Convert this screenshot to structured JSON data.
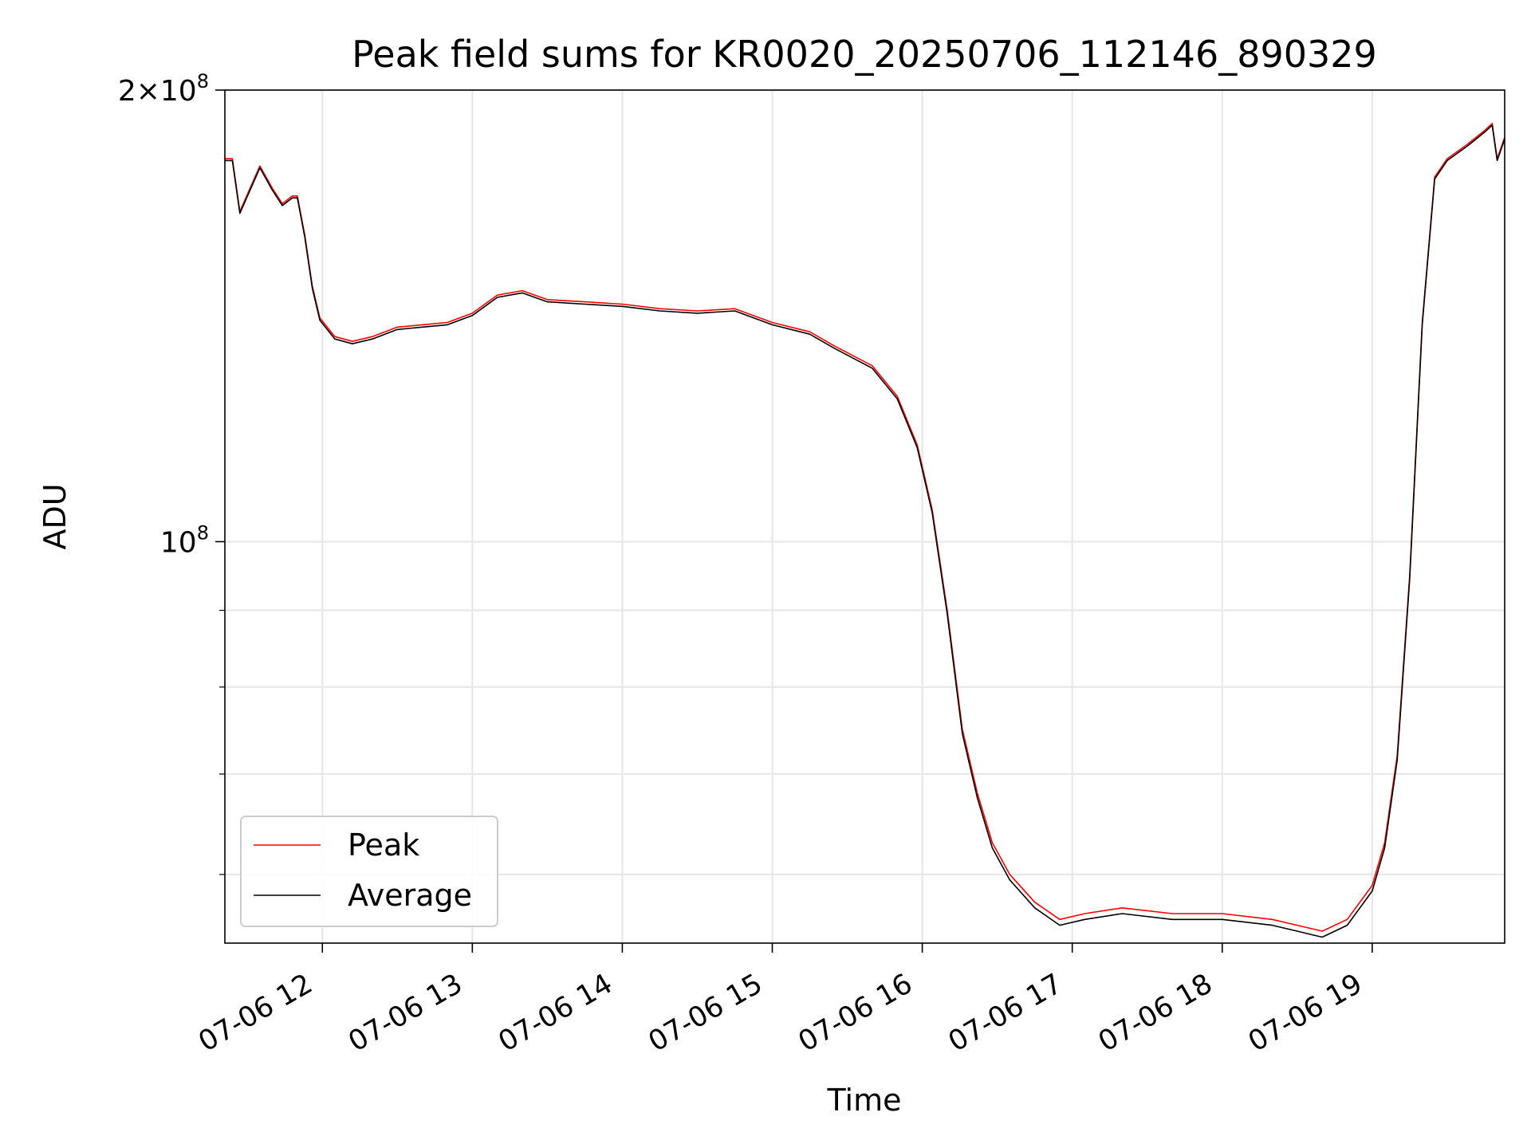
{
  "chart_data": {
    "type": "line",
    "title": "Peak field sums for KR0020_20250706_112146_890329",
    "xlabel": "Time",
    "ylabel": "ADU",
    "x_type": "datetime",
    "x_range": [
      "2025-07-06 11:21",
      "2025-07-06 19:53"
    ],
    "x_ticks": [
      {
        "t": "2025-07-06 12:00",
        "label": "07-06 12"
      },
      {
        "t": "2025-07-06 13:00",
        "label": "07-06 13"
      },
      {
        "t": "2025-07-06 14:00",
        "label": "07-06 14"
      },
      {
        "t": "2025-07-06 15:00",
        "label": "07-06 15"
      },
      {
        "t": "2025-07-06 16:00",
        "label": "07-06 16"
      },
      {
        "t": "2025-07-06 17:00",
        "label": "07-06 17"
      },
      {
        "t": "2025-07-06 18:00",
        "label": "07-06 18"
      },
      {
        "t": "2025-07-06 19:00",
        "label": "07-06 19"
      }
    ],
    "y_scale": "log",
    "ylim": [
      54000000,
      200000000
    ],
    "y_ticks_major": [
      {
        "value": 100000000,
        "base": "10",
        "exp": "8"
      },
      {
        "value": 200000000,
        "base": "2×10",
        "exp": "8"
      }
    ],
    "y_ticks_minor": [
      60000000,
      70000000,
      80000000,
      90000000
    ],
    "grid": true,
    "legend_position": "lower-left",
    "series": [
      {
        "name": "Peak",
        "color": "#ff0000",
        "line_width": 1,
        "x": [
          "2025-07-06 11:21",
          "2025-07-06 11:24",
          "2025-07-06 11:27",
          "2025-07-06 11:35",
          "2025-07-06 11:40",
          "2025-07-06 11:44",
          "2025-07-06 11:48",
          "2025-07-06 11:50",
          "2025-07-06 11:53",
          "2025-07-06 11:56",
          "2025-07-06 11:59",
          "2025-07-06 12:05",
          "2025-07-06 12:12",
          "2025-07-06 12:20",
          "2025-07-06 12:30",
          "2025-07-06 12:40",
          "2025-07-06 12:50",
          "2025-07-06 13:00",
          "2025-07-06 13:10",
          "2025-07-06 13:20",
          "2025-07-06 13:30",
          "2025-07-06 13:45",
          "2025-07-06 14:00",
          "2025-07-06 14:15",
          "2025-07-06 14:30",
          "2025-07-06 14:45",
          "2025-07-06 15:00",
          "2025-07-06 15:15",
          "2025-07-06 15:25",
          "2025-07-06 15:40",
          "2025-07-06 15:50",
          "2025-07-06 15:58",
          "2025-07-06 16:04",
          "2025-07-06 16:10",
          "2025-07-06 16:16",
          "2025-07-06 16:22",
          "2025-07-06 16:28",
          "2025-07-06 16:35",
          "2025-07-06 16:45",
          "2025-07-06 16:55",
          "2025-07-06 17:05",
          "2025-07-06 17:20",
          "2025-07-06 17:40",
          "2025-07-06 18:00",
          "2025-07-06 18:20",
          "2025-07-06 18:30",
          "2025-07-06 18:40",
          "2025-07-06 18:50",
          "2025-07-06 19:00",
          "2025-07-06 19:05",
          "2025-07-06 19:10",
          "2025-07-06 19:15",
          "2025-07-06 19:20",
          "2025-07-06 19:25",
          "2025-07-06 19:30",
          "2025-07-06 19:38",
          "2025-07-06 19:45",
          "2025-07-06 19:48",
          "2025-07-06 19:50",
          "2025-07-06 19:53"
        ],
        "y": [
          180000000,
          180000000,
          166000000,
          178000000,
          172000000,
          168000000,
          170000000,
          170000000,
          160000000,
          148000000,
          141000000,
          137000000,
          136000000,
          137000000,
          139000000,
          139500000,
          140000000,
          142000000,
          146000000,
          147000000,
          145000000,
          144500000,
          144000000,
          143000000,
          142500000,
          143000000,
          140000000,
          138000000,
          135000000,
          131000000,
          125000000,
          116000000,
          105000000,
          90000000,
          75000000,
          68000000,
          63000000,
          60000000,
          57500000,
          56000000,
          56500000,
          57000000,
          56500000,
          56500000,
          56000000,
          55500000,
          55000000,
          56000000,
          59000000,
          63000000,
          72000000,
          95000000,
          140000000,
          175000000,
          180000000,
          184000000,
          188000000,
          190000000,
          180000000,
          186000000
        ]
      },
      {
        "name": "Average",
        "color": "#000000",
        "line_width": 1,
        "x": [
          "2025-07-06 11:21",
          "2025-07-06 11:24",
          "2025-07-06 11:27",
          "2025-07-06 11:35",
          "2025-07-06 11:40",
          "2025-07-06 11:44",
          "2025-07-06 11:48",
          "2025-07-06 11:50",
          "2025-07-06 11:53",
          "2025-07-06 11:56",
          "2025-07-06 11:59",
          "2025-07-06 12:05",
          "2025-07-06 12:12",
          "2025-07-06 12:20",
          "2025-07-06 12:30",
          "2025-07-06 12:40",
          "2025-07-06 12:50",
          "2025-07-06 13:00",
          "2025-07-06 13:10",
          "2025-07-06 13:20",
          "2025-07-06 13:30",
          "2025-07-06 13:45",
          "2025-07-06 14:00",
          "2025-07-06 14:15",
          "2025-07-06 14:30",
          "2025-07-06 14:45",
          "2025-07-06 15:00",
          "2025-07-06 15:15",
          "2025-07-06 15:25",
          "2025-07-06 15:40",
          "2025-07-06 15:50",
          "2025-07-06 15:58",
          "2025-07-06 16:04",
          "2025-07-06 16:10",
          "2025-07-06 16:16",
          "2025-07-06 16:22",
          "2025-07-06 16:28",
          "2025-07-06 16:35",
          "2025-07-06 16:45",
          "2025-07-06 16:55",
          "2025-07-06 17:05",
          "2025-07-06 17:20",
          "2025-07-06 17:40",
          "2025-07-06 18:00",
          "2025-07-06 18:20",
          "2025-07-06 18:30",
          "2025-07-06 18:40",
          "2025-07-06 18:50",
          "2025-07-06 19:00",
          "2025-07-06 19:05",
          "2025-07-06 19:10",
          "2025-07-06 19:15",
          "2025-07-06 19:20",
          "2025-07-06 19:25",
          "2025-07-06 19:30",
          "2025-07-06 19:38",
          "2025-07-06 19:45",
          "2025-07-06 19:48",
          "2025-07-06 19:50",
          "2025-07-06 19:53"
        ],
        "y": [
          179500000,
          179500000,
          165500000,
          177500000,
          171500000,
          167500000,
          169500000,
          169500000,
          159500000,
          147500000,
          140500000,
          136500000,
          135500000,
          136500000,
          138500000,
          139000000,
          139500000,
          141500000,
          145500000,
          146500000,
          144500000,
          144000000,
          143500000,
          142500000,
          142000000,
          142500000,
          139500000,
          137500000,
          134500000,
          130500000,
          124500000,
          115500000,
          104500000,
          89500000,
          74500000,
          67500000,
          62500000,
          59500000,
          57000000,
          55500000,
          56000000,
          56500000,
          56000000,
          56000000,
          55500000,
          55000000,
          54500000,
          55500000,
          58500000,
          62500000,
          71500000,
          94500000,
          139500000,
          174500000,
          179500000,
          183500000,
          187500000,
          189500000,
          179500000,
          185500000
        ]
      }
    ]
  }
}
